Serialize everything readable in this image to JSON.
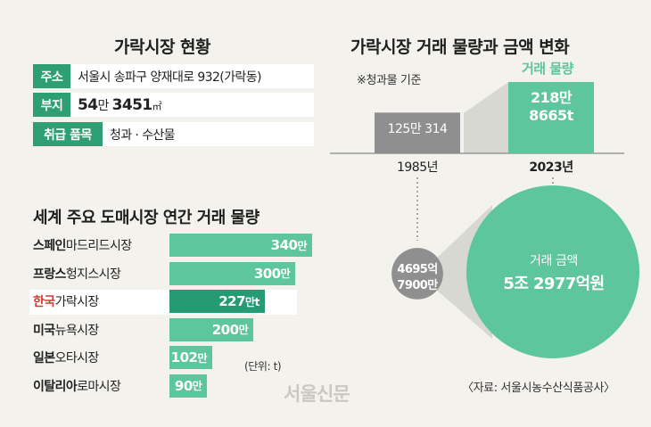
{
  "left_title": "가락시장 현황",
  "info": [
    {
      "label": "주소",
      "value": "서울시 송파구 양재대로 932(가락동)"
    },
    {
      "label": "부지",
      "value_num1": "54",
      "value_unit1": "만 ",
      "value_num2": "3451",
      "value_unit2": "㎡"
    },
    {
      "label": "취급 품목",
      "value": "청과 · 수산물"
    }
  ],
  "chart_data": [
    {
      "type": "bar",
      "title": "세계 주요 도매시장 연간 거래 물량",
      "unit_note": "(단위: t)",
      "categories": [
        {
          "country": "스페인",
          "market": "마드리드시장"
        },
        {
          "country": "프랑스",
          "market": "헝지스시장"
        },
        {
          "country": "한국",
          "market": "가락시장"
        },
        {
          "country": "미국",
          "market": "뉴욕시장"
        },
        {
          "country": "일본",
          "market": "오타시장"
        },
        {
          "country": "이탈리아",
          "market": "로마시장"
        }
      ],
      "values": [
        3400000,
        3000000,
        2270000,
        2000000,
        1020000,
        900000
      ],
      "value_labels": [
        "340만",
        "300만",
        "227만t",
        "200만",
        "102만",
        "90만"
      ],
      "highlight": "한국",
      "colors": {
        "bar": "#5dc69c",
        "highlight_bar": "#269a72",
        "highlight_text": "#d43b2f"
      }
    },
    {
      "type": "bar",
      "title": "가락시장 거래 물량과 금액 변화",
      "note": "※청과물 기준",
      "series_label": "거래 물량",
      "categories": [
        "1985년",
        "2023년"
      ],
      "values": [
        1250314,
        2188665
      ],
      "value_labels": [
        {
          "line1": "125만 314"
        },
        {
          "line1": "218만",
          "line2": "8665t"
        }
      ],
      "colors": {
        "1985": "#8f8f8f",
        "2023": "#5dc69c"
      }
    },
    {
      "type": "scatter",
      "title": "거래 금액",
      "categories": [
        "1985년",
        "2023년"
      ],
      "values": [
        469579000000,
        5297700000000
      ],
      "value_labels": [
        {
          "line1": "4695억",
          "line2": "7900만"
        },
        {
          "label": "거래 금액",
          "line2": "5조 2977억원"
        }
      ]
    }
  ],
  "source": "〈자료: 서울시농수산식품공사〉",
  "logo_text": "서울신문"
}
